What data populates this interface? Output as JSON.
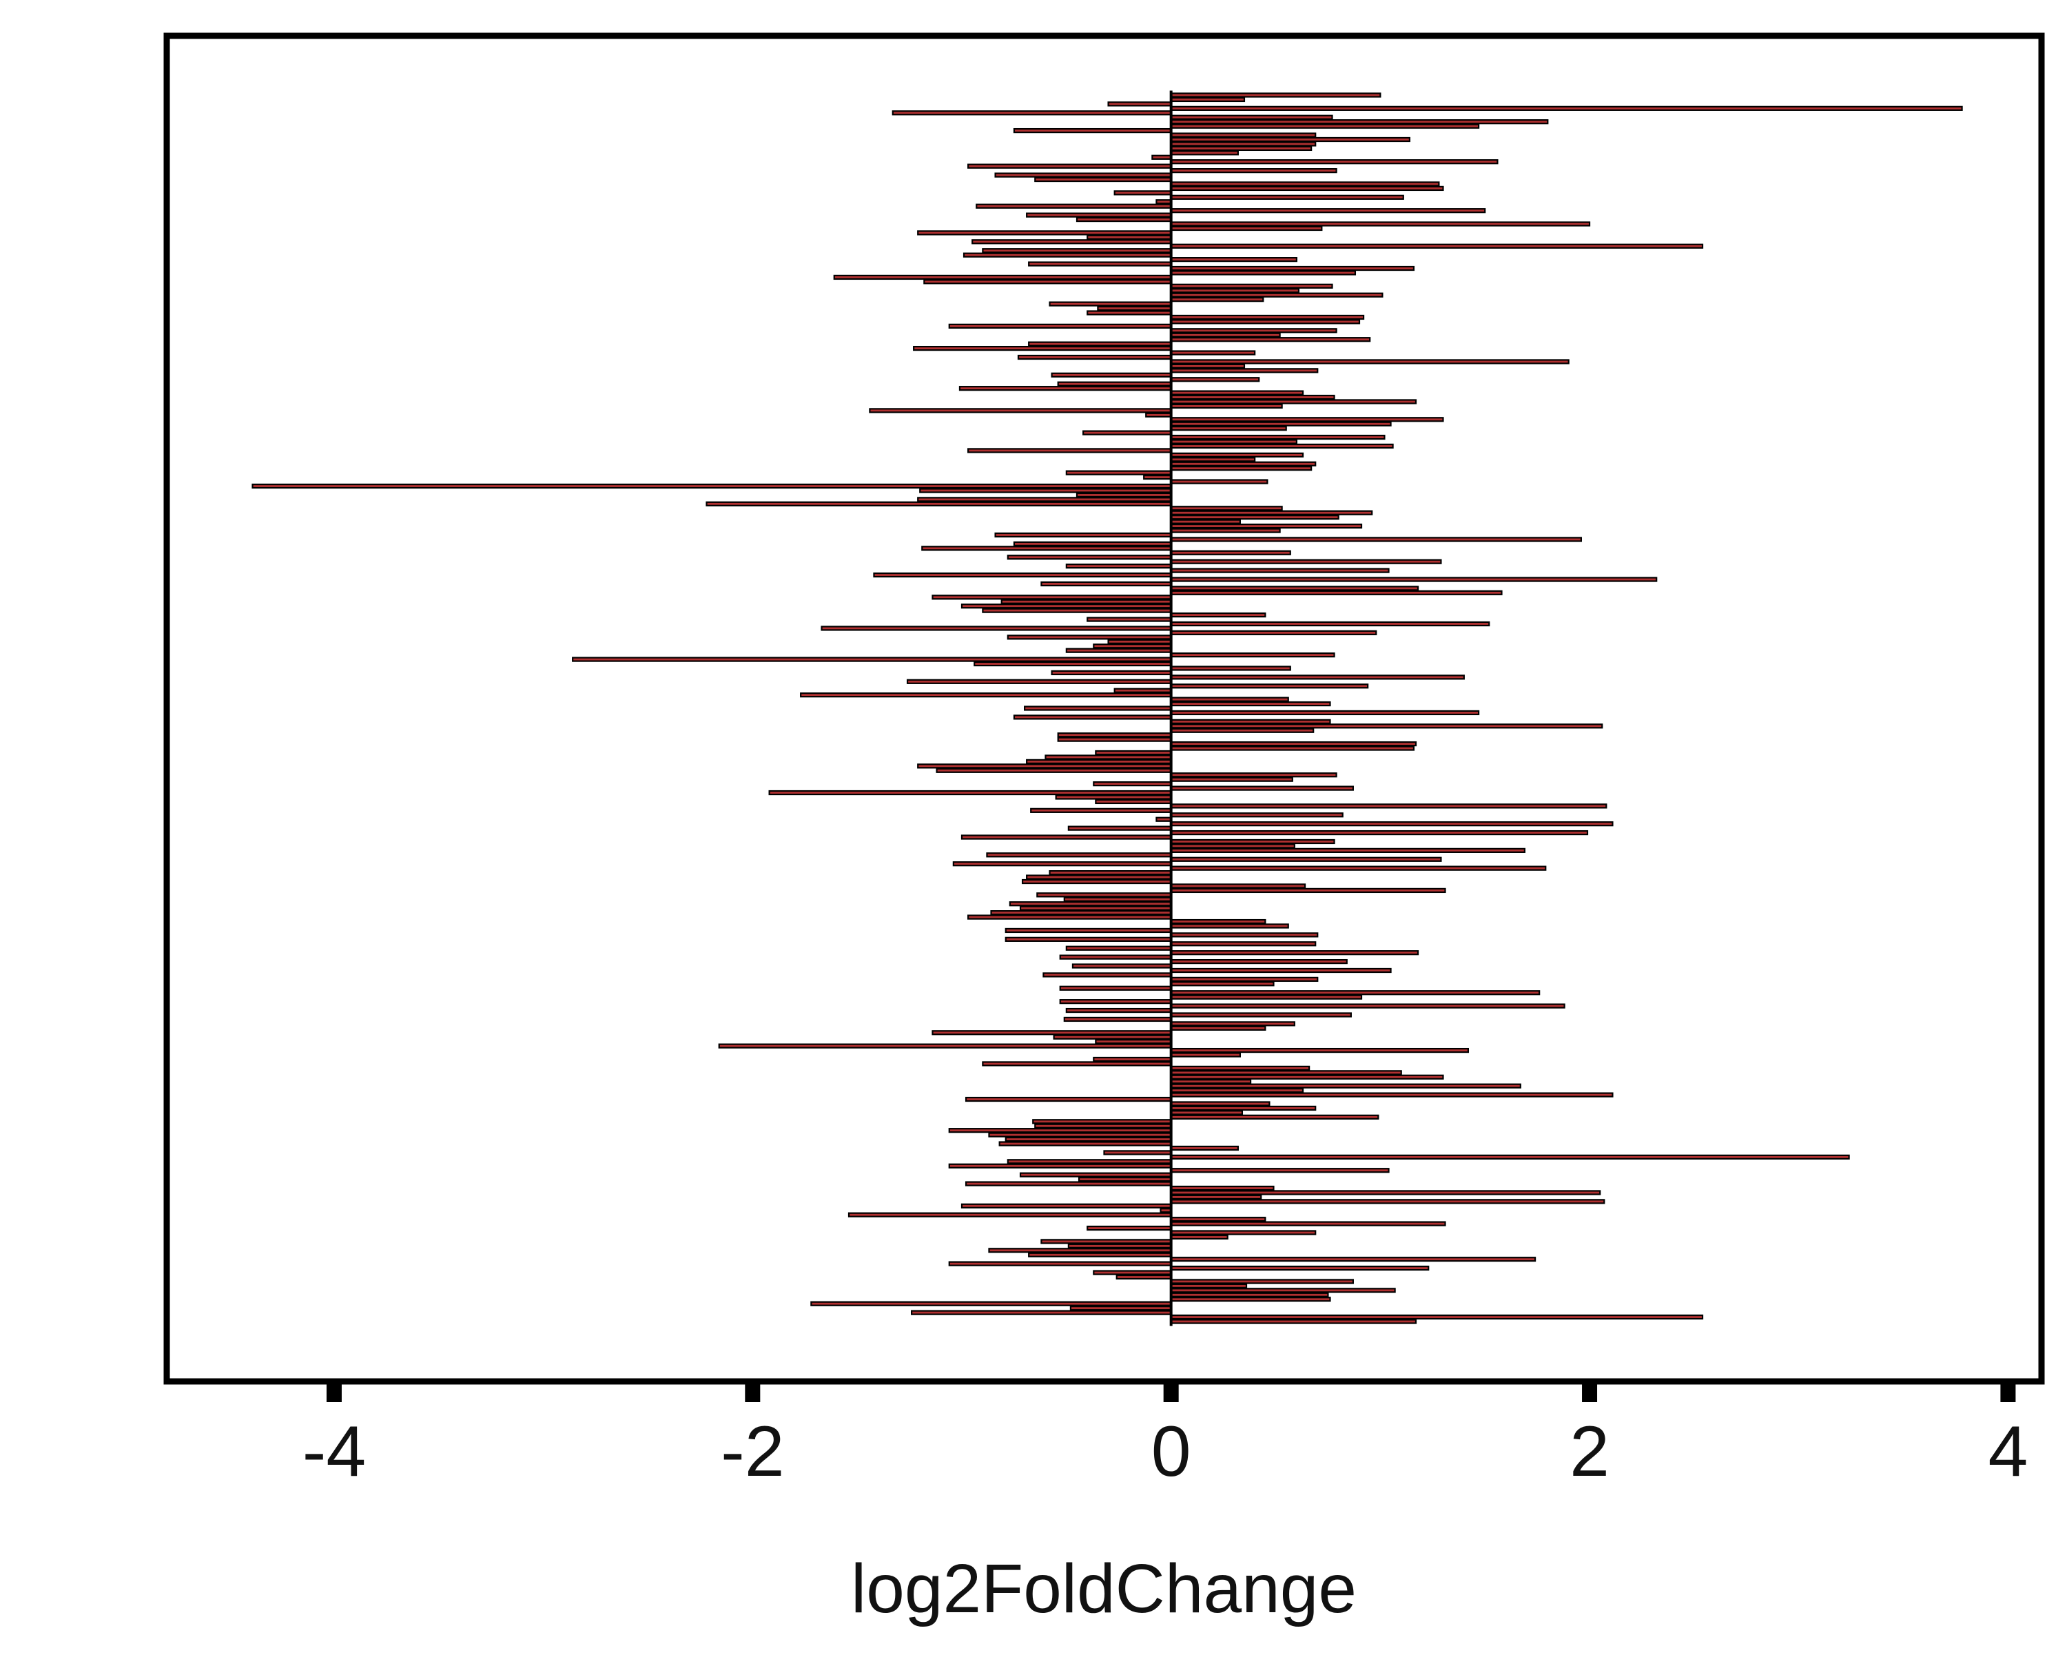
{
  "chart_data": {
    "type": "bar",
    "orientation": "horizontal",
    "xlabel": "log2FoldChange",
    "ylabel": "",
    "xlim": [
      -4.8,
      4.16
    ],
    "xticks": [
      -4,
      -2,
      0,
      2,
      4
    ],
    "xtick_labels": [
      "-4",
      "-2",
      "0",
      "2",
      "4"
    ],
    "y_tick_labels_shown": false,
    "grid": false,
    "legend": "none",
    "bar_fill": "#b03030",
    "bar_edge": "#000000",
    "values": [
      1.0,
      0.35,
      -0.3,
      3.78,
      -1.33,
      0.77,
      1.8,
      1.47,
      -0.75,
      0.69,
      1.14,
      0.69,
      0.67,
      0.32,
      -0.09,
      1.56,
      -0.97,
      0.79,
      -0.84,
      -0.65,
      1.28,
      1.3,
      -0.27,
      1.11,
      -0.07,
      -0.93,
      1.5,
      -0.69,
      -0.45,
      2.0,
      0.72,
      -1.21,
      -0.4,
      -0.95,
      2.54,
      -0.9,
      -0.99,
      0.6,
      -0.68,
      1.16,
      0.88,
      -1.61,
      -1.18,
      0.77,
      0.61,
      1.01,
      0.44,
      -0.58,
      -0.35,
      -0.4,
      0.92,
      0.9,
      -1.06,
      0.79,
      0.52,
      0.95,
      -0.68,
      -1.23,
      0.4,
      -0.73,
      1.9,
      0.35,
      0.7,
      -0.57,
      0.42,
      -0.54,
      -1.01,
      0.63,
      0.78,
      1.17,
      0.53,
      -1.44,
      -0.12,
      1.3,
      1.05,
      0.55,
      -0.42,
      1.02,
      0.6,
      1.06,
      -0.97,
      0.63,
      0.4,
      0.69,
      0.67,
      -0.5,
      -0.13,
      0.46,
      -4.39,
      -1.2,
      -0.45,
      -1.21,
      -2.22,
      0.53,
      0.96,
      0.8,
      0.33,
      0.91,
      0.52,
      -0.84,
      1.96,
      -0.75,
      -1.19,
      0.57,
      -0.78,
      1.29,
      -0.5,
      1.04,
      -1.42,
      2.32,
      -0.62,
      1.18,
      1.58,
      -1.14,
      -0.81,
      -1.0,
      -0.9,
      0.45,
      -0.4,
      1.52,
      -1.67,
      0.98,
      -0.78,
      -0.3,
      -0.37,
      -0.5,
      0.78,
      -2.86,
      -0.94,
      0.57,
      -0.57,
      1.4,
      -1.26,
      0.94,
      -0.27,
      -1.77,
      0.56,
      0.76,
      -0.7,
      1.47,
      -0.75,
      0.76,
      2.06,
      0.68,
      -0.54,
      -0.54,
      1.17,
      1.16,
      -0.36,
      -0.6,
      -0.69,
      -1.21,
      -1.12,
      0.79,
      0.58,
      -0.37,
      0.87,
      -1.92,
      -0.55,
      -0.36,
      2.08,
      -0.67,
      0.82,
      -0.07,
      2.11,
      -0.49,
      1.99,
      -1.0,
      0.78,
      0.59,
      1.69,
      -0.88,
      1.29,
      -1.04,
      1.79,
      -0.58,
      -0.69,
      -0.71,
      0.64,
      1.31,
      -0.64,
      -0.51,
      -0.77,
      -0.72,
      -0.86,
      -0.97,
      0.45,
      0.56,
      -0.79,
      0.7,
      -0.79,
      0.69,
      -0.5,
      1.18,
      -0.53,
      0.84,
      -0.47,
      1.05,
      -0.61,
      0.7,
      0.49,
      -0.53,
      1.76,
      0.91,
      -0.53,
      1.88,
      -0.5,
      0.86,
      -0.51,
      0.59,
      0.45,
      -1.14,
      -0.56,
      -0.36,
      -2.16,
      1.42,
      0.33,
      -0.37,
      -0.9,
      0.66,
      1.1,
      1.3,
      0.38,
      1.67,
      0.63,
      2.11,
      -0.98,
      0.47,
      0.69,
      0.34,
      0.99,
      -0.66,
      -0.65,
      -1.06,
      -0.87,
      -0.79,
      -0.82,
      0.32,
      -0.32,
      3.24,
      -0.78,
      -1.06,
      1.04,
      -0.72,
      -0.44,
      -0.98,
      0.49,
      2.05,
      0.43,
      2.07,
      -1.0,
      -0.05,
      -1.54,
      0.45,
      1.31,
      -0.4,
      0.69,
      0.27,
      -0.62,
      -0.49,
      -0.87,
      -0.68,
      1.74,
      -1.06,
      1.23,
      -0.37,
      -0.26,
      0.87,
      0.36,
      1.07,
      0.75,
      0.76,
      -1.72,
      -0.48,
      -1.24,
      2.54,
      1.17
    ]
  }
}
